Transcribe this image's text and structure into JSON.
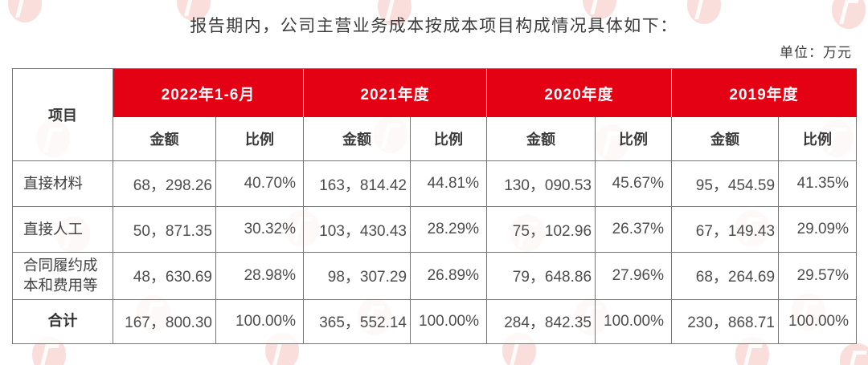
{
  "title": "报告期内，公司主营业务成本按成本项目构成情况具体如下：",
  "unit_label": "单位：万元",
  "colors": {
    "header_red": "#e50114",
    "grid_line": "#757575",
    "body_text": "#4d4d4d"
  },
  "table": {
    "item_header": "项目",
    "amount_header": "金额",
    "ratio_header": "比例",
    "periods": [
      "2022年1-6月",
      "2021年度",
      "2020年度",
      "2019年度"
    ],
    "rows": [
      {
        "label": "直接材料",
        "values": [
          "68，298.26",
          "40.70%",
          "163，814.42",
          "44.81%",
          "130，090.53",
          "45.67%",
          "95，454.59",
          "41.35%"
        ]
      },
      {
        "label": "直接人工",
        "values": [
          "50，871.35",
          "30.32%",
          "103，430.43",
          "28.29%",
          "75，102.96",
          "26.37%",
          "67，149.43",
          "29.09%"
        ]
      },
      {
        "label": "合同履约成本和费用等",
        "values": [
          "48，630.69",
          "28.98%",
          "98，307.29",
          "26.89%",
          "79，648.86",
          "27.96%",
          "68，264.69",
          "29.57%"
        ]
      },
      {
        "label": "合计",
        "values": [
          "167，800.30",
          "100.00%",
          "365，552.14",
          "100.00%",
          "284，842.35",
          "100.00%",
          "230，868.71",
          "100.00%"
        ]
      }
    ]
  }
}
